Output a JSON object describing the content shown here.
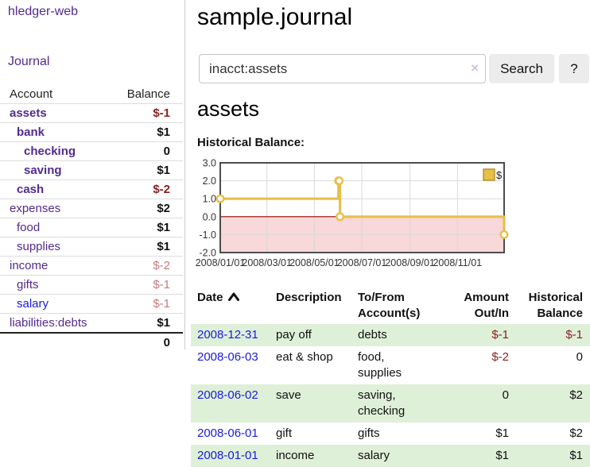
{
  "brand": "hledger-web",
  "nav": {
    "journal": "Journal"
  },
  "sidebar": {
    "headers": {
      "account": "Account",
      "balance": "Balance"
    },
    "accounts": [
      {
        "name": "assets",
        "balance": "$-1",
        "level": 0,
        "bold": true,
        "neg": "strong"
      },
      {
        "name": "bank",
        "balance": "$1",
        "level": 1,
        "bold": true,
        "neg": "none"
      },
      {
        "name": "checking",
        "balance": "0",
        "level": 2,
        "bold": true,
        "neg": "none"
      },
      {
        "name": "saving",
        "balance": "$1",
        "level": 2,
        "bold": true,
        "neg": "none"
      },
      {
        "name": "cash",
        "balance": "$-2",
        "level": 1,
        "bold": true,
        "neg": "strong"
      },
      {
        "name": "expenses",
        "balance": "$2",
        "level": 0,
        "bold": false,
        "neg": "none"
      },
      {
        "name": "food",
        "balance": "$1",
        "level": 1,
        "bold": false,
        "neg": "none"
      },
      {
        "name": "supplies",
        "balance": "$1",
        "level": 1,
        "bold": false,
        "neg": "none"
      },
      {
        "name": "income",
        "balance": "$-2",
        "level": 0,
        "bold": false,
        "neg": "weak"
      },
      {
        "name": "gifts",
        "balance": "$-1",
        "level": 1,
        "bold": false,
        "neg": "weak"
      },
      {
        "name": "salary",
        "balance": "$-1",
        "level": 1,
        "bold": false,
        "neg": "weak",
        "unvisited": true
      },
      {
        "name": "liabilities:debts",
        "balance": "$1",
        "level": 0,
        "bold": false,
        "neg": "none"
      }
    ],
    "total": "0"
  },
  "main": {
    "title": "sample.journal",
    "search": {
      "value": "inacct:assets",
      "clear": "×",
      "search_label": "Search",
      "help_label": "?"
    },
    "account_heading": "assets",
    "chart_title": "Historical Balance:"
  },
  "chart_data": {
    "type": "line",
    "step": true,
    "title": "Historical Balance",
    "legend_position": "top-right",
    "xlim": [
      "2008-01-01",
      "2008-12-31"
    ],
    "ylim": [
      -2.0,
      3.0
    ],
    "y_ticks": [
      3.0,
      2.0,
      1.0,
      0.0,
      -1.0,
      -2.0
    ],
    "x_ticks": [
      {
        "date": "2008-01-01",
        "label": "2008/01/01"
      },
      {
        "date": "2008-03-01",
        "label": "2008/03/01"
      },
      {
        "date": "2008-05-01",
        "label": "2008/05/01"
      },
      {
        "date": "2008-07-01",
        "label": "2008/07/01"
      },
      {
        "date": "2008-09-01",
        "label": "2008/09/01"
      },
      {
        "date": "2008-11-01",
        "label": "2008/11/01"
      }
    ],
    "series": [
      {
        "name": "$",
        "color": "#e7c04a",
        "points": [
          [
            "2008-01-01",
            1
          ],
          [
            "2008-06-01",
            2
          ],
          [
            "2008-06-02",
            2
          ],
          [
            "2008-06-03",
            0
          ],
          [
            "2008-12-31",
            -1
          ]
        ]
      }
    ],
    "grid_color": "#d9d9d9",
    "border_color": "#4d4d4d",
    "negative_region_fill": "#f8d8d8",
    "zero_line_color": "#990000"
  },
  "register": {
    "columns": [
      "Date",
      "Description",
      "To/From Account(s)",
      "Amount Out/In",
      "Historical Balance"
    ],
    "sorted_column": "Date",
    "sort_direction": "ascending",
    "rows": [
      {
        "date": "2008-12-31",
        "description": "pay off",
        "accounts": "debts",
        "amount": "$-1",
        "balance": "$-1"
      },
      {
        "date": "2008-06-03",
        "description": "eat & shop",
        "accounts": "food, supplies",
        "amount": "$-2",
        "balance": "0"
      },
      {
        "date": "2008-06-02",
        "description": "save",
        "accounts": "saving, checking",
        "amount": "0",
        "balance": "$2"
      },
      {
        "date": "2008-06-01",
        "description": "gift",
        "accounts": "gifts",
        "amount": "$1",
        "balance": "$2"
      },
      {
        "date": "2008-01-01",
        "description": "income",
        "accounts": "salary",
        "amount": "$1",
        "balance": "$1"
      }
    ]
  }
}
